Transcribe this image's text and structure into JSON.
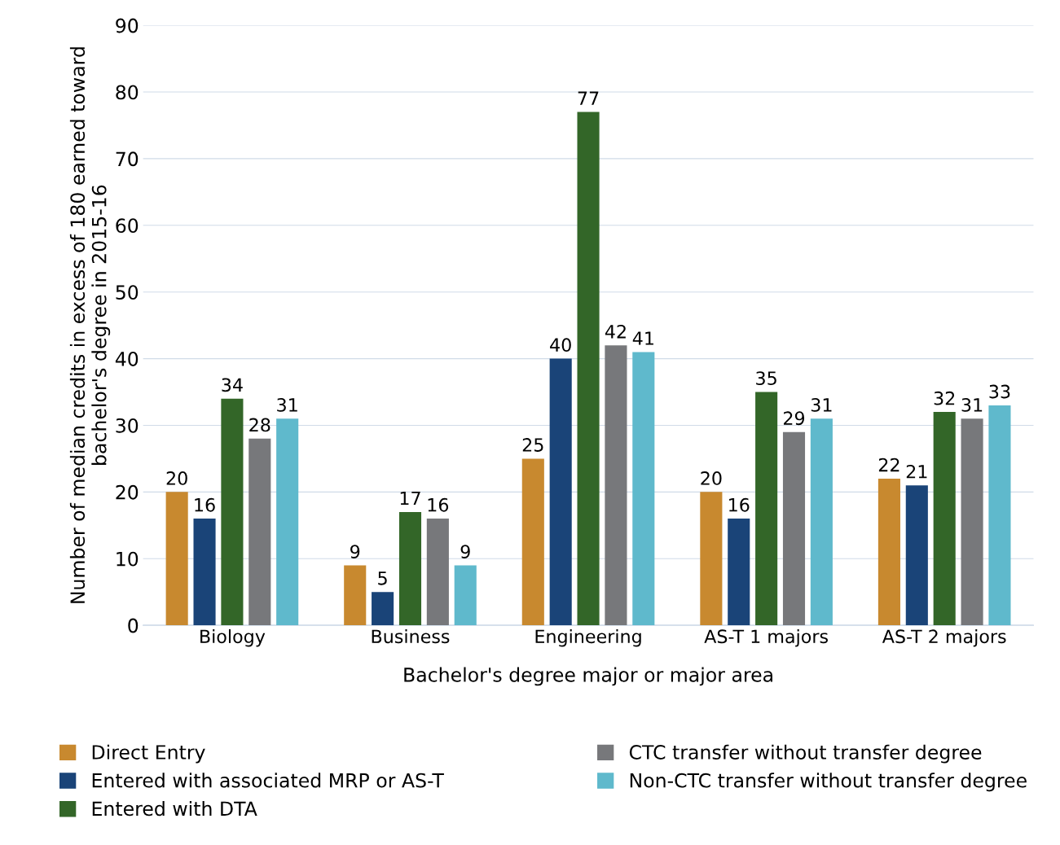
{
  "chart_data": {
    "type": "bar",
    "xlabel": "Bachelor's degree major or major area",
    "ylabel": "Number of median credits in excess of 180 earned toward bachelor's degree in 2015-16",
    "categories": [
      "Biology",
      "Business",
      "Engineering",
      "AS-T 1 majors",
      "AS-T 2 majors"
    ],
    "series": [
      {
        "name": "Direct Entry",
        "color": "#c8892f",
        "values": [
          20,
          9,
          25,
          20,
          22
        ]
      },
      {
        "name": "Entered with associated MRP or AS-T",
        "color": "#1a4478",
        "values": [
          16,
          5,
          40,
          16,
          21
        ]
      },
      {
        "name": "Entered with DTA",
        "color": "#336628",
        "values": [
          34,
          17,
          77,
          35,
          32
        ]
      },
      {
        "name": "CTC transfer without transfer degree",
        "color": "#77787b",
        "values": [
          28,
          16,
          42,
          29,
          31
        ]
      },
      {
        "name": "Non-CTC transfer without transfer degree",
        "color": "#5fb9cc",
        "values": [
          31,
          9,
          41,
          31,
          33
        ]
      }
    ],
    "ylim": [
      0,
      90
    ],
    "yticks": [
      0,
      10,
      20,
      30,
      40,
      50,
      60,
      70,
      80,
      90
    ],
    "grid": "y",
    "legend": "bottom",
    "data_labels": true
  }
}
